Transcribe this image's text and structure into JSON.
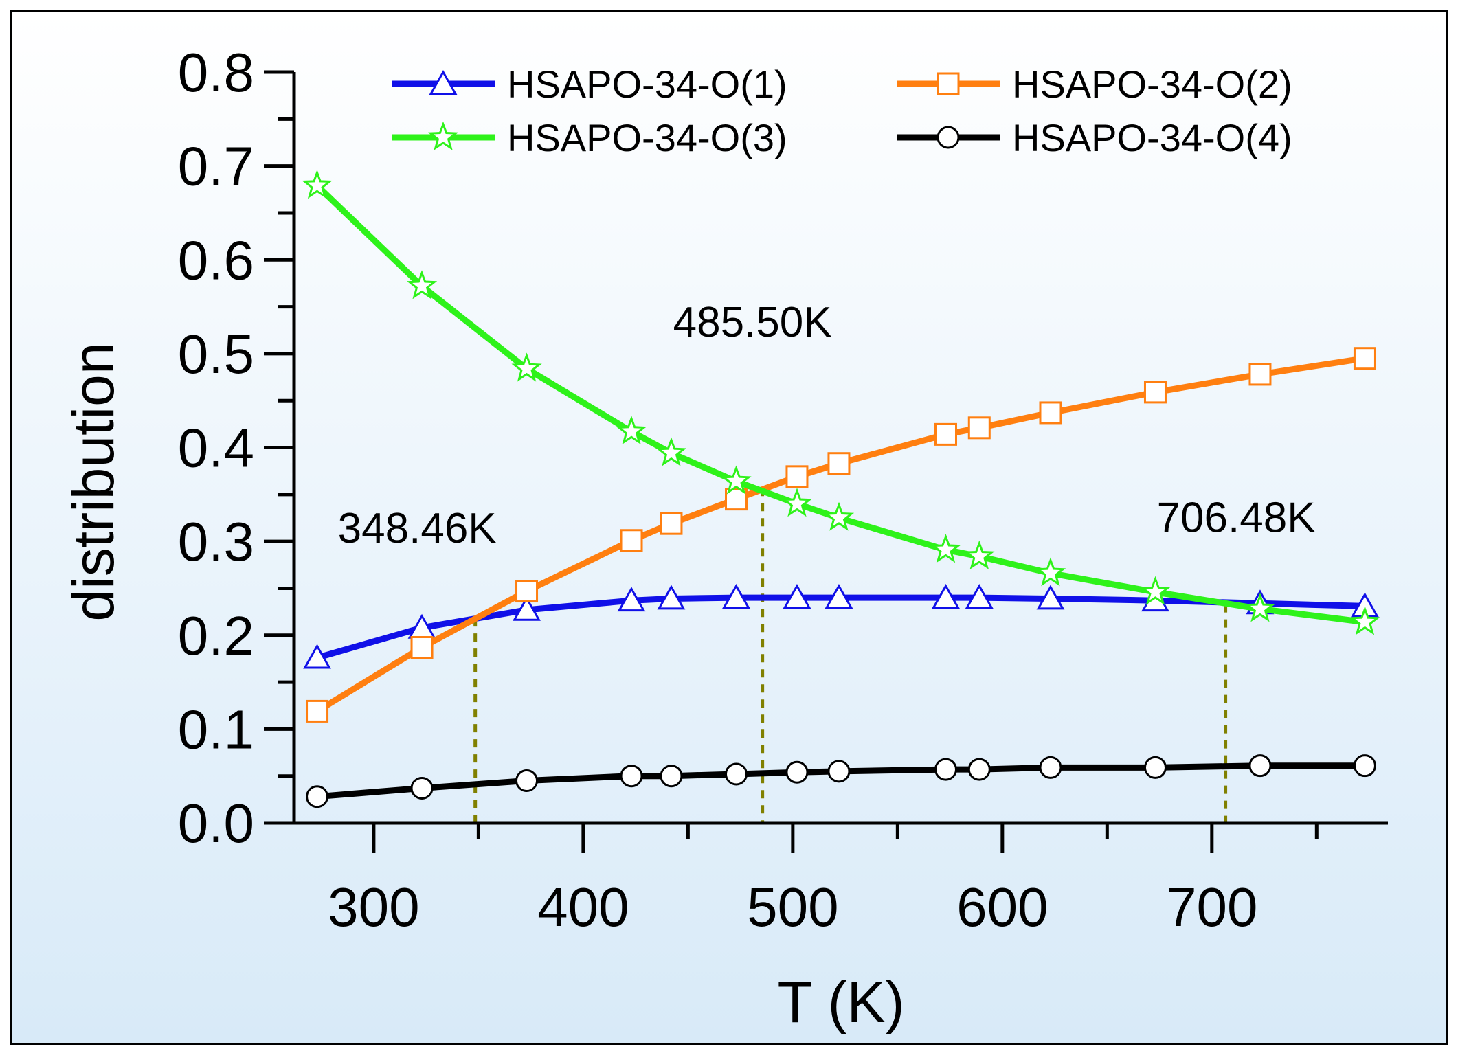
{
  "chart_data": {
    "type": "line",
    "title": "",
    "xlabel": "T (K)",
    "ylabel": "distribution",
    "xlim": [
      262,
      784
    ],
    "ylim": [
      0.0,
      0.8
    ],
    "xticks": [
      300,
      400,
      500,
      600,
      700
    ],
    "xtick_labels": [
      "300",
      "400",
      "500",
      "600",
      "700"
    ],
    "yticks": [
      0.0,
      0.1,
      0.2,
      0.3,
      0.4,
      0.5,
      0.6,
      0.7,
      0.8
    ],
    "ytick_labels": [
      "0.0",
      "0.1",
      "0.2",
      "0.3",
      "0.4",
      "0.5",
      "0.6",
      "0.7",
      "0.8"
    ],
    "x": [
      273,
      323,
      373,
      423,
      442,
      473,
      502,
      522,
      573,
      589,
      623,
      673,
      723,
      773
    ],
    "series": [
      {
        "name": "HSAPO-34-O(1)",
        "color": "#1010e8",
        "marker": "triangle",
        "values": [
          0.176,
          0.208,
          0.227,
          0.237,
          0.239,
          0.24,
          0.24,
          0.24,
          0.24,
          0.24,
          0.239,
          0.237,
          0.234,
          0.231
        ]
      },
      {
        "name": "HSAPO-34-O(2)",
        "color": "#ff7f10",
        "marker": "square",
        "values": [
          0.119,
          0.187,
          0.247,
          0.301,
          0.319,
          0.345,
          0.369,
          0.383,
          0.414,
          0.421,
          0.437,
          0.459,
          0.478,
          0.495
        ]
      },
      {
        "name": "HSAPO-34-O(3)",
        "color": "#2ef21a",
        "marker": "star",
        "values": [
          0.679,
          0.572,
          0.484,
          0.417,
          0.394,
          0.364,
          0.34,
          0.325,
          0.291,
          0.284,
          0.266,
          0.246,
          0.228,
          0.214
        ]
      },
      {
        "name": "HSAPO-34-O(4)",
        "color": "#000000",
        "marker": "circle",
        "values": [
          0.028,
          0.037,
          0.045,
          0.05,
          0.05,
          0.052,
          0.054,
          0.055,
          0.057,
          0.057,
          0.059,
          0.059,
          0.061,
          0.061
        ]
      }
    ],
    "annotations": [
      {
        "text": "348.46K",
        "x": 348.46,
        "y": 0.218
      },
      {
        "text": "485.50K",
        "x": 485.5,
        "y": 0.357
      },
      {
        "text": "706.48K",
        "x": 706.48,
        "y": 0.233
      }
    ],
    "legend": "top",
    "grid": false,
    "background": [
      "#ffffff",
      "#d8eaf8"
    ],
    "guide_color": "#808000"
  }
}
